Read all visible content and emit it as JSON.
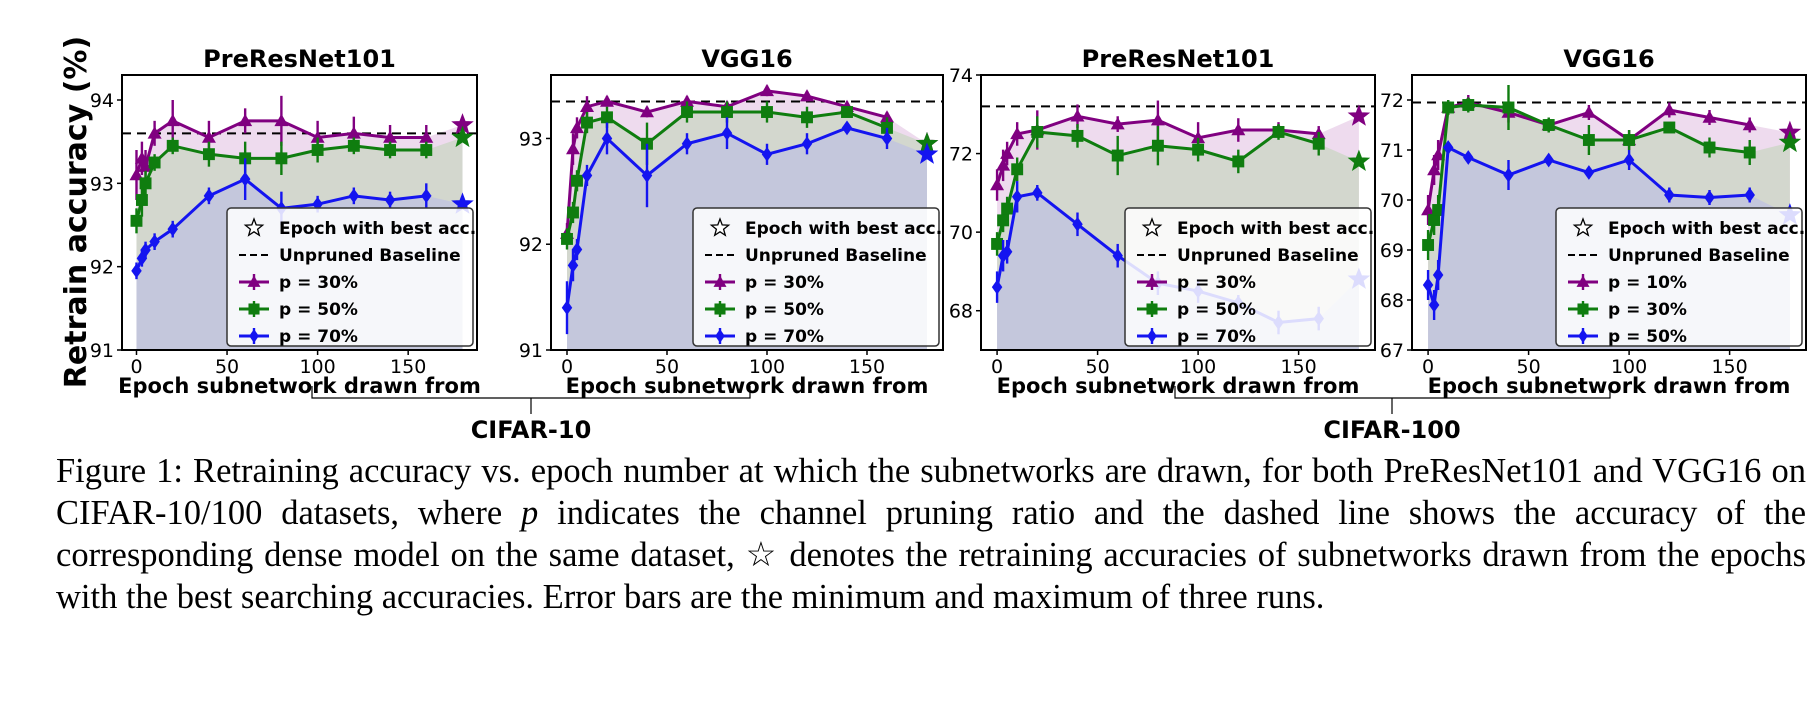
{
  "figure": {
    "ylabel": "Retrain accuracy (%)",
    "group_labels": [
      "CIFAR-10",
      "CIFAR-100"
    ],
    "legend_star": "Epoch with best acc.",
    "legend_baseline": "Unpruned Baseline"
  },
  "caption": {
    "prefix": "Figure 1: Retraining accuracy vs.  epoch number at which the subnetworks are drawn, for both PreResNet101 and VGG16 on CIFAR-10/100 datasets, where ",
    "var": "p",
    "suffix": " indicates the channel pruning ratio and the dashed line shows the accuracy of the corresponding dense model on the same dataset, ☆ denotes the retraining accuracies of subnetworks drawn from the epochs with the best searching accuracies. Error bars are the minimum and maximum of three runs."
  },
  "colors": {
    "purple": "#800080",
    "green": "#0f7d0f",
    "blue": "#1414f0"
  },
  "chart_data": [
    {
      "type": "line",
      "title": "PreResNet101",
      "xlabel": "Epoch subnetwork drawn from",
      "ylabel": "Retrain accuracy (%)",
      "xlim": [
        -8,
        188
      ],
      "ylim": [
        91,
        94.3
      ],
      "xticks": [
        0,
        50,
        100,
        150
      ],
      "yticks": [
        91,
        92,
        93,
        94
      ],
      "baseline": 93.6,
      "series": [
        {
          "name": "p = 30%",
          "color": "#800080",
          "marker": "triangle",
          "x": [
            0,
            3,
            5,
            10,
            20,
            40,
            60,
            80,
            100,
            120,
            140,
            160
          ],
          "y": [
            93.1,
            93.3,
            93.2,
            93.6,
            93.75,
            93.55,
            93.75,
            93.75,
            93.55,
            93.6,
            93.55,
            93.55
          ],
          "err": [
            0.3,
            0.2,
            0.2,
            0.15,
            0.25,
            0.2,
            0.15,
            0.3,
            0.2,
            0.2,
            0.15,
            0.15
          ],
          "star": [
            180,
            93.7
          ]
        },
        {
          "name": "p = 50%",
          "color": "#0f7d0f",
          "marker": "square",
          "x": [
            0,
            3,
            5,
            10,
            20,
            40,
            60,
            80,
            100,
            120,
            140,
            160
          ],
          "y": [
            92.55,
            92.8,
            93.0,
            93.25,
            93.45,
            93.35,
            93.3,
            93.3,
            93.4,
            93.45,
            93.4,
            93.4
          ],
          "err": [
            0.15,
            0.2,
            0.15,
            0.1,
            0.1,
            0.15,
            0.2,
            0.2,
            0.15,
            0.1,
            0.1,
            0.1
          ],
          "star": [
            180,
            93.55
          ]
        },
        {
          "name": "p = 70%",
          "color": "#1414f0",
          "marker": "diamond",
          "x": [
            0,
            3,
            5,
            10,
            20,
            40,
            60,
            80,
            100,
            120,
            140,
            160
          ],
          "y": [
            91.95,
            92.1,
            92.2,
            92.3,
            92.45,
            92.85,
            93.05,
            92.7,
            92.75,
            92.85,
            92.8,
            92.85
          ],
          "err": [
            0.1,
            0.1,
            0.1,
            0.1,
            0.1,
            0.1,
            0.25,
            0.2,
            0.1,
            0.1,
            0.1,
            0.15
          ],
          "star": [
            180,
            92.75
          ]
        }
      ]
    },
    {
      "type": "line",
      "title": "VGG16",
      "xlabel": "Epoch subnetwork drawn from",
      "xlim": [
        -8,
        188
      ],
      "ylim": [
        91,
        93.6
      ],
      "xticks": [
        0,
        50,
        100,
        150
      ],
      "yticks": [
        91,
        92,
        93
      ],
      "baseline": 93.35,
      "series": [
        {
          "name": "p = 30%",
          "color": "#800080",
          "marker": "triangle",
          "x": [
            0,
            3,
            5,
            10,
            20,
            40,
            60,
            80,
            100,
            120,
            140,
            160
          ],
          "y": [
            92.1,
            92.9,
            93.1,
            93.3,
            93.35,
            93.25,
            93.35,
            93.3,
            93.45,
            93.4,
            93.3,
            93.2
          ],
          "err": [
            0.1,
            0.15,
            0.1,
            0.1,
            0.05,
            0.05,
            0.05,
            0.05,
            0.05,
            0.05,
            0.05,
            0.05
          ],
          "star": [
            180,
            92.95
          ]
        },
        {
          "name": "p = 50%",
          "color": "#0f7d0f",
          "marker": "square",
          "x": [
            0,
            3,
            5,
            10,
            20,
            40,
            60,
            80,
            100,
            120,
            140,
            160
          ],
          "y": [
            92.05,
            92.3,
            92.6,
            93.15,
            93.2,
            92.95,
            93.25,
            93.25,
            93.25,
            93.2,
            93.25,
            93.1
          ],
          "err": [
            0.1,
            0.1,
            0.1,
            0.1,
            0.1,
            0.2,
            0.1,
            0.1,
            0.1,
            0.1,
            0.05,
            0.1
          ],
          "star": [
            180,
            92.95
          ]
        },
        {
          "name": "p = 70%",
          "color": "#1414f0",
          "marker": "diamond",
          "x": [
            0,
            3,
            5,
            10,
            20,
            40,
            60,
            80,
            100,
            120,
            140,
            160
          ],
          "y": [
            91.4,
            91.8,
            91.95,
            92.65,
            93.0,
            92.65,
            92.95,
            93.05,
            92.85,
            92.95,
            93.1,
            93.0
          ],
          "err": [
            0.25,
            0.15,
            0.1,
            0.1,
            0.15,
            0.3,
            0.1,
            0.15,
            0.1,
            0.1,
            0.05,
            0.1
          ],
          "star": [
            180,
            92.85
          ]
        }
      ]
    },
    {
      "type": "line",
      "title": "PreResNet101",
      "xlabel": "Epoch subnetwork drawn from",
      "xlim": [
        -8,
        188
      ],
      "ylim": [
        67,
        74
      ],
      "xticks": [
        0,
        50,
        100,
        150
      ],
      "yticks": [
        68,
        70,
        72,
        74
      ],
      "baseline": 73.2,
      "series": [
        {
          "name": "p = 30%",
          "color": "#800080",
          "marker": "triangle",
          "x": [
            0,
            3,
            5,
            10,
            20,
            40,
            60,
            80,
            100,
            120,
            140,
            160
          ],
          "y": [
            71.2,
            71.7,
            72.0,
            72.5,
            72.6,
            72.95,
            72.75,
            72.85,
            72.4,
            72.6,
            72.6,
            72.5
          ],
          "err": [
            0.4,
            0.4,
            0.3,
            0.3,
            0.5,
            0.3,
            0.2,
            0.5,
            0.4,
            0.3,
            0.2,
            0.2
          ],
          "star": [
            180,
            72.95
          ]
        },
        {
          "name": "p = 50%",
          "color": "#0f7d0f",
          "marker": "square",
          "x": [
            0,
            3,
            5,
            10,
            20,
            40,
            60,
            80,
            100,
            120,
            140,
            160
          ],
          "y": [
            69.7,
            70.3,
            70.6,
            71.6,
            72.55,
            72.45,
            71.95,
            72.2,
            72.1,
            71.8,
            72.55,
            72.25
          ],
          "err": [
            0.3,
            0.3,
            0.3,
            0.3,
            0.4,
            0.3,
            0.5,
            0.5,
            0.3,
            0.3,
            0.2,
            0.3
          ],
          "star": [
            180,
            71.8
          ]
        },
        {
          "name": "p = 70%",
          "color": "#1414f0",
          "marker": "diamond",
          "x": [
            0,
            3,
            5,
            10,
            20,
            40,
            60,
            80,
            100,
            120,
            140,
            160
          ],
          "y": [
            68.6,
            69.4,
            69.5,
            70.9,
            71.0,
            70.2,
            69.4,
            68.7,
            68.5,
            68.2,
            67.7,
            67.8
          ],
          "err": [
            0.4,
            0.4,
            0.3,
            0.4,
            0.2,
            0.3,
            0.3,
            0.3,
            0.3,
            0.2,
            0.3,
            0.3
          ],
          "star": [
            180,
            68.8
          ]
        }
      ]
    },
    {
      "type": "line",
      "title": "VGG16",
      "xlabel": "Epoch subnetwork drawn from",
      "xlim": [
        -8,
        188
      ],
      "ylim": [
        67,
        72.5
      ],
      "xticks": [
        0,
        50,
        100,
        150
      ],
      "yticks": [
        67,
        68,
        69,
        70,
        71,
        72
      ],
      "baseline": 71.95,
      "series": [
        {
          "name": "p = 10%",
          "color": "#800080",
          "marker": "triangle",
          "x": [
            0,
            3,
            5,
            10,
            20,
            40,
            60,
            80,
            100,
            120,
            140,
            160
          ],
          "y": [
            69.8,
            70.6,
            70.9,
            71.85,
            71.95,
            71.75,
            71.5,
            71.75,
            71.2,
            71.8,
            71.65,
            71.5
          ],
          "err": [
            0.3,
            0.3,
            0.3,
            0.15,
            0.15,
            0.2,
            0.15,
            0.15,
            0.2,
            0.15,
            0.15,
            0.15
          ],
          "star": [
            180,
            71.35
          ]
        },
        {
          "name": "p = 30%",
          "color": "#0f7d0f",
          "marker": "square",
          "x": [
            0,
            3,
            5,
            10,
            20,
            40,
            60,
            80,
            100,
            120,
            140,
            160
          ],
          "y": [
            69.1,
            69.6,
            69.8,
            71.85,
            71.9,
            71.85,
            71.5,
            71.2,
            71.2,
            71.45,
            71.05,
            70.95
          ],
          "err": [
            0.3,
            0.3,
            0.3,
            0.15,
            0.15,
            0.45,
            0.15,
            0.3,
            0.2,
            0.1,
            0.2,
            0.25
          ],
          "star": [
            180,
            71.15
          ]
        },
        {
          "name": "p = 50%",
          "color": "#1414f0",
          "marker": "diamond",
          "x": [
            0,
            3,
            5,
            10,
            20,
            40,
            60,
            80,
            100,
            120,
            140,
            160
          ],
          "y": [
            68.3,
            67.9,
            68.5,
            71.05,
            70.85,
            70.5,
            70.8,
            70.55,
            70.8,
            70.1,
            70.05,
            70.1
          ],
          "err": [
            0.3,
            0.3,
            0.3,
            0.1,
            0.1,
            0.3,
            0.1,
            0.1,
            0.2,
            0.15,
            0.15,
            0.15
          ],
          "star": [
            180,
            69.7
          ]
        }
      ]
    }
  ]
}
